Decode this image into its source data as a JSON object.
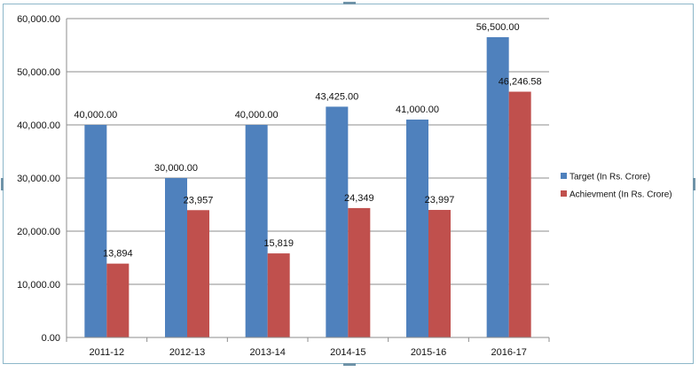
{
  "chart_data": {
    "type": "bar",
    "categories": [
      "2011-12",
      "2012-13",
      "2013-14",
      "2014-15",
      "2015-16",
      "2016-17"
    ],
    "series": [
      {
        "name": "Target (In Rs. Crore)",
        "color": "#4f81bd",
        "values": [
          40000,
          30000,
          40000,
          43425,
          41000,
          56500
        ],
        "labels": [
          "40,000.00",
          "30,000.00",
          "40,000.00",
          "43,425.00",
          "41,000.00",
          "56,500.00"
        ]
      },
      {
        "name": "Achievment  (In Rs. Crore)",
        "color": "#c0504d",
        "values": [
          13894,
          23957,
          15819,
          24349,
          23997,
          46246.58
        ],
        "labels": [
          "13,894",
          "23,957",
          "15,819",
          "24,349",
          "23,997",
          "46,246.58"
        ]
      }
    ],
    "y_ticks": [
      "0.00",
      "10,000.00",
      "20,000.00",
      "30,000.00",
      "40,000.00",
      "50,000.00",
      "60,000.00"
    ],
    "ylim": [
      0,
      60000
    ],
    "grid": true,
    "legend_position": "right",
    "title": "",
    "xlabel": "",
    "ylabel": ""
  }
}
